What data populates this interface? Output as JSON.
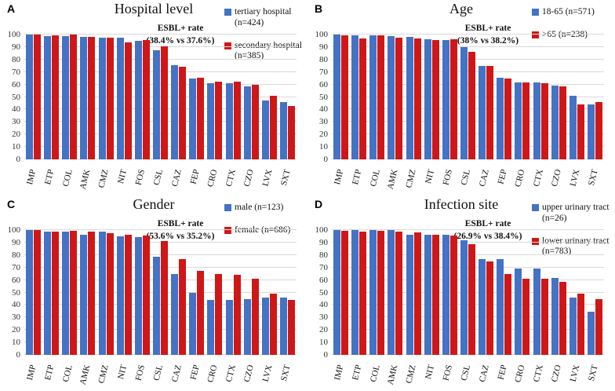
{
  "y_axis": {
    "ticks": [
      0,
      10,
      20,
      30,
      40,
      50,
      60,
      70,
      80,
      90,
      100
    ]
  },
  "categories": [
    "IMP",
    "ETP",
    "COL",
    "AMK",
    "CMZ",
    "NIT",
    "FOS",
    "CSL",
    "CAZ",
    "FEP",
    "CRO",
    "CTX",
    "CZO",
    "LVX",
    "SXT"
  ],
  "colors": {
    "series1": "#4472c4",
    "series2": "#d01717",
    "grid": "#d9d9d9"
  },
  "chart_data": [
    {
      "type": "bar",
      "letter": "A",
      "title": "Hospital level",
      "annotation_line1": "ESBL+ rate",
      "annotation_line2": "(38.4% vs 37.6%)",
      "xlabel": "",
      "ylabel": "",
      "ylim": [
        0,
        100
      ],
      "grid": true,
      "legend_position": "top-right",
      "categories": [
        "IMP",
        "ETP",
        "COL",
        "AMK",
        "CMZ",
        "NIT",
        "FOS",
        "CSL",
        "CAZ",
        "FEP",
        "CRO",
        "CTX",
        "CZO",
        "LVX",
        "SXT"
      ],
      "series": [
        {
          "name": "tertiary hospital (n=424)",
          "color": "#4472c4",
          "values": [
            100,
            98.5,
            99,
            98,
            97.5,
            97.5,
            95,
            87.5,
            75.5,
            64.5,
            61,
            61,
            58.5,
            47,
            46
          ]
        },
        {
          "name": "secondary hospital (n=385)",
          "color": "#d01717",
          "values": [
            100,
            99.5,
            100,
            98,
            97.5,
            94,
            95.5,
            90.5,
            74.5,
            65.5,
            62,
            62,
            59.5,
            51,
            43
          ]
        }
      ]
    },
    {
      "type": "bar",
      "letter": "B",
      "title": "Age",
      "annotation_line1": "ESBL+ rate",
      "annotation_line2": "(38% vs 38.2%)",
      "xlabel": "",
      "ylabel": "",
      "ylim": [
        0,
        100
      ],
      "grid": true,
      "legend_position": "top-right",
      "categories": [
        "IMP",
        "ETP",
        "COL",
        "AMK",
        "CMZ",
        "NIT",
        "FOS",
        "CSL",
        "CAZ",
        "FEP",
        "CRO",
        "CTX",
        "CZO",
        "LVX",
        "SXT"
      ],
      "series": [
        {
          "name": "18-65 (n=571)",
          "color": "#4472c4",
          "values": [
            100,
            99.5,
            99.5,
            98.5,
            98,
            96,
            95.5,
            90,
            75,
            65.5,
            61.5,
            61.5,
            59,
            51,
            44
          ]
        },
        {
          "name": ">65 (n=238)",
          "color": "#d01717",
          "values": [
            99.5,
            97,
            99.5,
            97.5,
            97,
            95.5,
            96,
            86,
            75,
            64.5,
            61.5,
            61,
            58.5,
            44,
            46
          ]
        }
      ]
    },
    {
      "type": "bar",
      "letter": "C",
      "title": "Gender",
      "annotation_line1": "ESBL+ rate",
      "annotation_line2": "(53.6% vs 35.2%)",
      "xlabel": "",
      "ylabel": "",
      "ylim": [
        0,
        100
      ],
      "grid": true,
      "legend_position": "top-right",
      "categories": [
        "IMP",
        "ETP",
        "COL",
        "AMK",
        "CMZ",
        "NIT",
        "FOS",
        "CSL",
        "CAZ",
        "FEP",
        "CRO",
        "CTX",
        "CZO",
        "LVX",
        "SXT"
      ],
      "series": [
        {
          "name": "male (n=123)",
          "color": "#4472c4",
          "values": [
            100,
            98.5,
            99,
            96.5,
            99,
            95,
            94.5,
            78.5,
            65,
            49.5,
            44,
            44,
            44.5,
            46,
            46
          ]
        },
        {
          "name": "female (n=686)",
          "color": "#d01717",
          "values": [
            100,
            99,
            99.5,
            98.5,
            97.5,
            96,
            95.5,
            91,
            76.5,
            67.5,
            64.5,
            64,
            61,
            49,
            44
          ]
        }
      ]
    },
    {
      "type": "bar",
      "letter": "D",
      "title": "Infection site",
      "annotation_line1": "ESBL+ rate",
      "annotation_line2": "(26.9% vs 38.4%)",
      "xlabel": "",
      "ylabel": "",
      "ylim": [
        0,
        100
      ],
      "grid": true,
      "legend_position": "top-right",
      "categories": [
        "IMP",
        "ETP",
        "COL",
        "AMK",
        "CMZ",
        "NIT",
        "FOS",
        "CSL",
        "CAZ",
        "FEP",
        "CRO",
        "CTX",
        "CZO",
        "LVX",
        "SXT"
      ],
      "series": [
        {
          "name": "upper urinary tract (n=26)",
          "color": "#4472c4",
          "values": [
            100,
            100,
            100,
            100,
            96,
            96,
            96,
            92,
            77,
            76.5,
            69,
            69,
            61.5,
            46,
            34.5
          ]
        },
        {
          "name": "lower urinary tract (n=783)",
          "color": "#d01717",
          "values": [
            99.5,
            99,
            99.5,
            98.5,
            98,
            96,
            95.5,
            89,
            75,
            65,
            61,
            61,
            58.5,
            49,
            44.5
          ]
        }
      ]
    }
  ]
}
